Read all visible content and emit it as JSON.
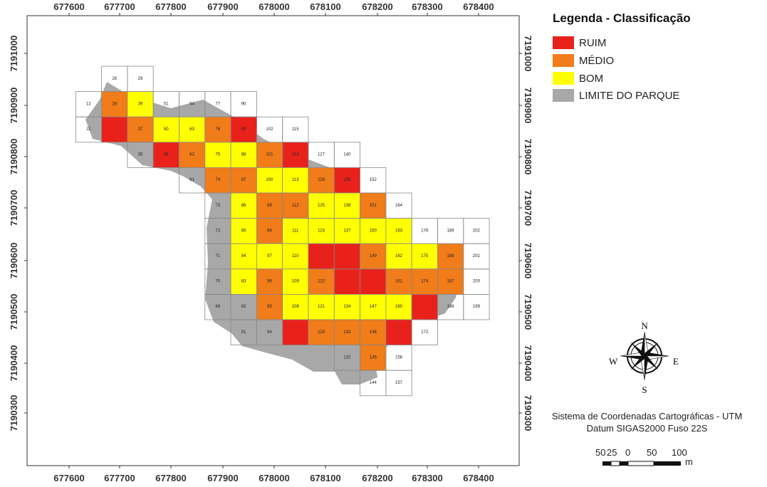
{
  "map": {
    "x_ticks": [
      "677600",
      "677700",
      "677800",
      "677900",
      "678000",
      "678100",
      "678200",
      "678300",
      "678400"
    ],
    "y_ticks": [
      "7191000",
      "7190900",
      "7190800",
      "7190700",
      "7190600",
      "7190500",
      "7190400",
      "7190300"
    ],
    "cells": [
      {
        "col": 2,
        "row": 0,
        "label": "26",
        "cls": "none"
      },
      {
        "col": 3,
        "row": 0,
        "label": "29",
        "cls": "none"
      },
      {
        "col": 1,
        "row": 1,
        "label": "12",
        "cls": "none"
      },
      {
        "col": 2,
        "row": 1,
        "label": "28",
        "cls": "medio"
      },
      {
        "col": 3,
        "row": 1,
        "label": "39",
        "cls": "bom"
      },
      {
        "col": 4,
        "row": 1,
        "label": "51",
        "cls": "none"
      },
      {
        "col": 5,
        "row": 1,
        "label": "64",
        "cls": "none"
      },
      {
        "col": 6,
        "row": 1,
        "label": "77",
        "cls": "none"
      },
      {
        "col": 7,
        "row": 1,
        "label": "90",
        "cls": "none"
      },
      {
        "col": 1,
        "row": 2,
        "label": "11",
        "cls": "none"
      },
      {
        "col": 2,
        "row": 2,
        "label": "",
        "cls": "ruim"
      },
      {
        "col": 3,
        "row": 2,
        "label": "37",
        "cls": "medio"
      },
      {
        "col": 4,
        "row": 2,
        "label": "50",
        "cls": "bom"
      },
      {
        "col": 5,
        "row": 2,
        "label": "63",
        "cls": "bom"
      },
      {
        "col": 6,
        "row": 2,
        "label": "76",
        "cls": "medio"
      },
      {
        "col": 7,
        "row": 2,
        "label": "89",
        "cls": "ruim"
      },
      {
        "col": 8,
        "row": 2,
        "label": "102",
        "cls": "none"
      },
      {
        "col": 9,
        "row": 2,
        "label": "115",
        "cls": "none"
      },
      {
        "col": 3,
        "row": 3,
        "label": "36",
        "cls": "none"
      },
      {
        "col": 4,
        "row": 3,
        "label": "49",
        "cls": "ruim"
      },
      {
        "col": 5,
        "row": 3,
        "label": "62",
        "cls": "medio"
      },
      {
        "col": 6,
        "row": 3,
        "label": "75",
        "cls": "bom"
      },
      {
        "col": 7,
        "row": 3,
        "label": "88",
        "cls": "bom"
      },
      {
        "col": 8,
        "row": 3,
        "label": "101",
        "cls": "medio"
      },
      {
        "col": 9,
        "row": 3,
        "label": "114",
        "cls": "ruim"
      },
      {
        "col": 10,
        "row": 3,
        "label": "127",
        "cls": "none"
      },
      {
        "col": 11,
        "row": 3,
        "label": "140",
        "cls": "none"
      },
      {
        "col": 5,
        "row": 4,
        "label": "61",
        "cls": "none"
      },
      {
        "col": 6,
        "row": 4,
        "label": "74",
        "cls": "medio"
      },
      {
        "col": 7,
        "row": 4,
        "label": "87",
        "cls": "medio"
      },
      {
        "col": 8,
        "row": 4,
        "label": "100",
        "cls": "bom"
      },
      {
        "col": 9,
        "row": 4,
        "label": "113",
        "cls": "bom"
      },
      {
        "col": 10,
        "row": 4,
        "label": "126",
        "cls": "medio"
      },
      {
        "col": 11,
        "row": 4,
        "label": "139",
        "cls": "ruim"
      },
      {
        "col": 12,
        "row": 4,
        "label": "152",
        "cls": "none"
      },
      {
        "col": 6,
        "row": 5,
        "label": "73",
        "cls": "none"
      },
      {
        "col": 7,
        "row": 5,
        "label": "86",
        "cls": "bom"
      },
      {
        "col": 8,
        "row": 5,
        "label": "99",
        "cls": "medio"
      },
      {
        "col": 9,
        "row": 5,
        "label": "112",
        "cls": "medio"
      },
      {
        "col": 10,
        "row": 5,
        "label": "125",
        "cls": "bom"
      },
      {
        "col": 11,
        "row": 5,
        "label": "138",
        "cls": "bom"
      },
      {
        "col": 12,
        "row": 5,
        "label": "151",
        "cls": "medio"
      },
      {
        "col": 13,
        "row": 5,
        "label": "164",
        "cls": "none"
      },
      {
        "col": 6,
        "row": 6,
        "label": "72",
        "cls": "none"
      },
      {
        "col": 7,
        "row": 6,
        "label": "85",
        "cls": "bom"
      },
      {
        "col": 8,
        "row": 6,
        "label": "98",
        "cls": "medio"
      },
      {
        "col": 9,
        "row": 6,
        "label": "111",
        "cls": "bom"
      },
      {
        "col": 10,
        "row": 6,
        "label": "124",
        "cls": "bom"
      },
      {
        "col": 11,
        "row": 6,
        "label": "137",
        "cls": "bom"
      },
      {
        "col": 12,
        "row": 6,
        "label": "150",
        "cls": "bom"
      },
      {
        "col": 13,
        "row": 6,
        "label": "163",
        "cls": "bom"
      },
      {
        "col": 14,
        "row": 6,
        "label": "176",
        "cls": "none"
      },
      {
        "col": 15,
        "row": 6,
        "label": "189",
        "cls": "none"
      },
      {
        "col": 16,
        "row": 6,
        "label": "202",
        "cls": "none"
      },
      {
        "col": 6,
        "row": 7,
        "label": "71",
        "cls": "none"
      },
      {
        "col": 7,
        "row": 7,
        "label": "84",
        "cls": "bom"
      },
      {
        "col": 8,
        "row": 7,
        "label": "97",
        "cls": "bom"
      },
      {
        "col": 9,
        "row": 7,
        "label": "110",
        "cls": "bom"
      },
      {
        "col": 10,
        "row": 7,
        "label": "",
        "cls": "ruim"
      },
      {
        "col": 11,
        "row": 7,
        "label": "",
        "cls": "ruim"
      },
      {
        "col": 12,
        "row": 7,
        "label": "149",
        "cls": "medio"
      },
      {
        "col": 13,
        "row": 7,
        "label": "162",
        "cls": "bom"
      },
      {
        "col": 14,
        "row": 7,
        "label": "175",
        "cls": "bom"
      },
      {
        "col": 15,
        "row": 7,
        "label": "188",
        "cls": "medio"
      },
      {
        "col": 16,
        "row": 7,
        "label": "201",
        "cls": "none"
      },
      {
        "col": 6,
        "row": 8,
        "label": "70",
        "cls": "none"
      },
      {
        "col": 7,
        "row": 8,
        "label": "83",
        "cls": "bom"
      },
      {
        "col": 8,
        "row": 8,
        "label": "96",
        "cls": "medio"
      },
      {
        "col": 9,
        "row": 8,
        "label": "109",
        "cls": "bom"
      },
      {
        "col": 10,
        "row": 8,
        "label": "122",
        "cls": "medio"
      },
      {
        "col": 11,
        "row": 8,
        "label": "",
        "cls": "ruim"
      },
      {
        "col": 12,
        "row": 8,
        "label": "",
        "cls": "ruim"
      },
      {
        "col": 13,
        "row": 8,
        "label": "161",
        "cls": "medio"
      },
      {
        "col": 14,
        "row": 8,
        "label": "174",
        "cls": "medio"
      },
      {
        "col": 15,
        "row": 8,
        "label": "187",
        "cls": "medio"
      },
      {
        "col": 16,
        "row": 8,
        "label": "200",
        "cls": "none"
      },
      {
        "col": 6,
        "row": 9,
        "label": "69",
        "cls": "none"
      },
      {
        "col": 7,
        "row": 9,
        "label": "82",
        "cls": "none"
      },
      {
        "col": 8,
        "row": 9,
        "label": "95",
        "cls": "medio"
      },
      {
        "col": 9,
        "row": 9,
        "label": "108",
        "cls": "bom"
      },
      {
        "col": 10,
        "row": 9,
        "label": "121",
        "cls": "bom"
      },
      {
        "col": 11,
        "row": 9,
        "label": "134",
        "cls": "bom"
      },
      {
        "col": 12,
        "row": 9,
        "label": "147",
        "cls": "bom"
      },
      {
        "col": 13,
        "row": 9,
        "label": "160",
        "cls": "bom"
      },
      {
        "col": 14,
        "row": 9,
        "label": "",
        "cls": "ruim"
      },
      {
        "col": 15,
        "row": 9,
        "label": "186",
        "cls": "none"
      },
      {
        "col": 16,
        "row": 9,
        "label": "199",
        "cls": "none"
      },
      {
        "col": 7,
        "row": 10,
        "label": "81",
        "cls": "none"
      },
      {
        "col": 8,
        "row": 10,
        "label": "94",
        "cls": "none"
      },
      {
        "col": 9,
        "row": 10,
        "label": "",
        "cls": "ruim"
      },
      {
        "col": 10,
        "row": 10,
        "label": "120",
        "cls": "medio"
      },
      {
        "col": 11,
        "row": 10,
        "label": "133",
        "cls": "medio"
      },
      {
        "col": 12,
        "row": 10,
        "label": "146",
        "cls": "medio"
      },
      {
        "col": 13,
        "row": 10,
        "label": "",
        "cls": "ruim"
      },
      {
        "col": 14,
        "row": 10,
        "label": "172",
        "cls": "none"
      },
      {
        "col": 11,
        "row": 11,
        "label": "132",
        "cls": "none"
      },
      {
        "col": 12,
        "row": 11,
        "label": "145",
        "cls": "medio"
      },
      {
        "col": 13,
        "row": 11,
        "label": "158",
        "cls": "none"
      },
      {
        "col": 12,
        "row": 12,
        "label": "144",
        "cls": "none"
      },
      {
        "col": 13,
        "row": 12,
        "label": "157",
        "cls": "none"
      }
    ]
  },
  "legend": {
    "title": "Legenda - Classificação",
    "items": [
      {
        "label": "RUIM",
        "color": "#e8221b"
      },
      {
        "label": "MÉDIO",
        "color": "#f07c1a"
      },
      {
        "label": "BOM",
        "color": "#ffff00"
      },
      {
        "label": "LIMITE DO PARQUE",
        "color": "#a8a8a8"
      }
    ]
  },
  "compass": {
    "n": "N",
    "s": "S",
    "e": "E",
    "w": "W"
  },
  "info": {
    "line1": "Sistema de Coordenadas Cartográficas - UTM",
    "line2": "Datum SIGAS2000 Fuso 22S"
  },
  "scale": {
    "labels": [
      "50",
      "25",
      "0",
      "50",
      "100"
    ],
    "unit": "m"
  },
  "colors": {
    "ruim": "#e8221b",
    "medio": "#f07c1a",
    "bom": "#ffff00",
    "park": "#a8a8a8",
    "cell_border": "#888888"
  }
}
